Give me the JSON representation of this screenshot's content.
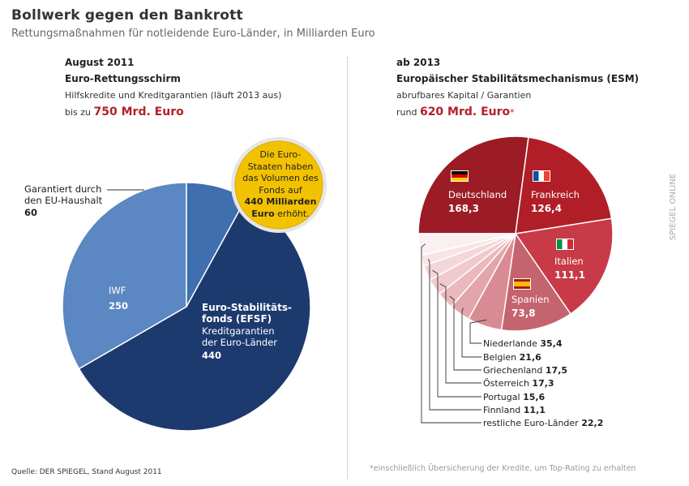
{
  "title": "Bollwerk gegen den Bankrott",
  "subtitle": "Rettungsmaßnahmen für notleidende Euro-Länder, in Milliarden Euro",
  "brand": "SPIEGEL ONLINE",
  "left": {
    "date": "August 2011",
    "name": "Euro-Rettungsschirm",
    "desc": "Hilfskredite und Kreditgarantien (läuft 2013 aus)",
    "amount_prefix": "bis zu",
    "amount": "750 Mrd. Euro",
    "badge_line1": "Die Euro-",
    "badge_line2": "Staaten haben",
    "badge_line3": "das Volumen des",
    "badge_line4": "Fonds auf",
    "badge_bold1": "440 Milliarden",
    "badge_bold2": "Euro",
    "badge_tail": " erhöht."
  },
  "right": {
    "date": "ab 2013",
    "name": "Europäischer Stabilitätsmechanismus (ESM)",
    "desc": "abrufbares Kapital / Garantien",
    "amount_prefix": "rund",
    "amount": "620 Mrd. Euro",
    "amount_mark": "*"
  },
  "source": "Quelle: DER SPIEGEL, Stand August 2011",
  "footnote": "*einschließlich Übersicherung der Kredite, um Top-Rating zu erhalten",
  "colors": {
    "efsf": "#1c3a6e",
    "iwf": "#5b87c2",
    "eu": "#3f6fae",
    "accent": "#b3202a",
    "badge": "#f2c200"
  },
  "chart_data": [
    {
      "type": "pie",
      "title": "Euro-Rettungsschirm",
      "slices": [
        {
          "name": "Euro-Stabilitätsfonds (EFSF) Kreditgarantien der Euro-Länder",
          "label_lines": [
            "Euro-Stabilitäts-",
            "fonds (EFSF)",
            "Kreditgarantien",
            "der Euro-Länder"
          ],
          "value": 440,
          "value_label": "440",
          "color": "#1c3a6e"
        },
        {
          "name": "IWF",
          "label_lines": [
            "IWF"
          ],
          "value": 250,
          "value_label": "250",
          "color": "#5b87c2"
        },
        {
          "name": "Garantiert durch den EU-Haushalt",
          "label_lines": [
            "Garantiert durch",
            "den EU-Haushalt"
          ],
          "value": 60,
          "value_label": "60",
          "color": "#3f6fae"
        }
      ]
    },
    {
      "type": "pie",
      "title": "Europäischer Stabilitätsmechanismus (ESM)",
      "slices": [
        {
          "name": "Deutschland",
          "value": 168.3,
          "value_label": "168,3",
          "color": "#9b1c24",
          "flag": "de"
        },
        {
          "name": "Frankreich",
          "value": 126.4,
          "value_label": "126,4",
          "color": "#b11e28",
          "flag": "fr"
        },
        {
          "name": "Italien",
          "value": 111.1,
          "value_label": "111,1",
          "color": "#c83a47",
          "flag": "it"
        },
        {
          "name": "Spanien",
          "value": 73.8,
          "value_label": "73,8",
          "color": "#c4646f",
          "flag": "es"
        },
        {
          "name": "Niederlande",
          "value": 35.4,
          "value_label": "35,4",
          "color": "#d98b94"
        },
        {
          "name": "Belgien",
          "value": 21.6,
          "value_label": "21,6",
          "color": "#e3a5ac"
        },
        {
          "name": "Griechenland",
          "value": 17.5,
          "value_label": "17,5",
          "color": "#eab8be"
        },
        {
          "name": "Österreich",
          "value": 17.3,
          "value_label": "17,3",
          "color": "#f0c9cd"
        },
        {
          "name": "Portugal",
          "value": 15.6,
          "value_label": "15,6",
          "color": "#f4d7da"
        },
        {
          "name": "Finnland",
          "value": 11.1,
          "value_label": "11,1",
          "color": "#f8e4e6"
        },
        {
          "name": "restliche Euro-Länder",
          "value": 22.2,
          "value_label": "22,2",
          "color": "#fbf0f1"
        }
      ]
    }
  ]
}
